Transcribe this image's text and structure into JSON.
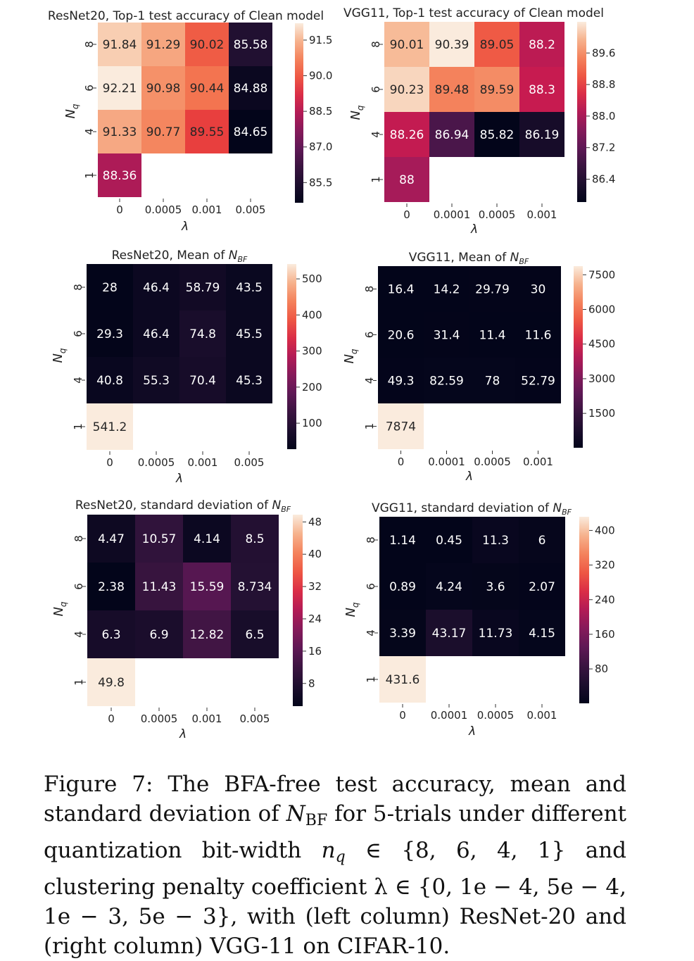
{
  "chart_data": [
    {
      "type": "heatmap",
      "title_main": "ResNet20, Top-1 test accuracy of Clean model",
      "title_sym": "",
      "xlabel": "λ",
      "ylabel_main": "N",
      "ylabel_sub": "q",
      "x_ticks": [
        "0",
        "0.0005",
        "0.001",
        "0.005"
      ],
      "y_ticks": [
        "8",
        "6",
        "4",
        "1"
      ],
      "cells": [
        [
          "91.84",
          "91.29",
          "90.02",
          "85.58"
        ],
        [
          "92.21",
          "90.98",
          "90.44",
          "84.88"
        ],
        [
          "91.33",
          "90.77",
          "89.55",
          "84.65"
        ],
        [
          "88.36",
          null,
          null,
          null
        ]
      ],
      "vmin": 84.65,
      "vmax": 92.21,
      "colorbar_ticks": [
        85.5,
        87.0,
        88.5,
        90.0,
        91.5
      ],
      "colorbar_labels": [
        "85.5",
        "87.0",
        "88.5",
        "90.0",
        "91.5"
      ]
    },
    {
      "type": "heatmap",
      "title_main": "VGG11, Top-1 test accuracy of Clean model",
      "title_sym": "",
      "xlabel": "λ",
      "ylabel_main": "N",
      "ylabel_sub": "q",
      "x_ticks": [
        "0",
        "0.0001",
        "0.0005",
        "0.001"
      ],
      "y_ticks": [
        "8",
        "6",
        "4",
        "1"
      ],
      "cells": [
        [
          "90.01",
          "90.39",
          "89.05",
          "88.2"
        ],
        [
          "90.23",
          "89.48",
          "89.59",
          "88.3"
        ],
        [
          "88.26",
          "86.94",
          "85.82",
          "86.19"
        ],
        [
          "88",
          null,
          null,
          null
        ]
      ],
      "vmin": 85.82,
      "vmax": 90.39,
      "colorbar_ticks": [
        86.4,
        87.2,
        88.0,
        88.8,
        89.6
      ],
      "colorbar_labels": [
        "86.4",
        "87.2",
        "88.0",
        "88.8",
        "89.6"
      ]
    },
    {
      "type": "heatmap",
      "title_main": "ResNet20, Mean of ",
      "title_sym": "N",
      "title_sub": "BF",
      "xlabel": "λ",
      "ylabel_main": "N",
      "ylabel_sub": "q",
      "x_ticks": [
        "0",
        "0.0005",
        "0.001",
        "0.005"
      ],
      "y_ticks": [
        "8",
        "6",
        "4",
        "1"
      ],
      "cells": [
        [
          "28",
          "46.4",
          "58.79",
          "43.5"
        ],
        [
          "29.3",
          "46.4",
          "74.8",
          "45.5"
        ],
        [
          "40.8",
          "55.3",
          "70.4",
          "45.3"
        ],
        [
          "541.2",
          null,
          null,
          null
        ]
      ],
      "vmin": 28,
      "vmax": 541.2,
      "colorbar_ticks": [
        100,
        200,
        300,
        400,
        500
      ],
      "colorbar_labels": [
        "100",
        "200",
        "300",
        "400",
        "500"
      ]
    },
    {
      "type": "heatmap",
      "title_main": "VGG11, Mean of ",
      "title_sym": "N",
      "title_sub": "BF",
      "xlabel": "λ",
      "ylabel_main": "N",
      "ylabel_sub": "q",
      "x_ticks": [
        "0",
        "0.0001",
        "0.0005",
        "0.001"
      ],
      "y_ticks": [
        "8",
        "6",
        "4",
        "1"
      ],
      "cells": [
        [
          "16.4",
          "14.2",
          "29.79",
          "30"
        ],
        [
          "20.6",
          "31.4",
          "11.4",
          "11.6"
        ],
        [
          "49.3",
          "82.59",
          "78",
          "52.79"
        ],
        [
          "7874",
          null,
          null,
          null
        ]
      ],
      "vmin": 11.4,
      "vmax": 7874,
      "colorbar_ticks": [
        1500,
        3000,
        4500,
        6000,
        7500
      ],
      "colorbar_labels": [
        "1500",
        "3000",
        "4500",
        "6000",
        "7500"
      ]
    },
    {
      "type": "heatmap",
      "title_main": "ResNet20, standard deviation of ",
      "title_sym": "N",
      "title_sub": "BF",
      "xlabel": "λ",
      "ylabel_main": "N",
      "ylabel_sub": "q",
      "x_ticks": [
        "0",
        "0.0005",
        "0.001",
        "0.005"
      ],
      "y_ticks": [
        "8",
        "6",
        "4",
        "1"
      ],
      "cells": [
        [
          "4.47",
          "10.57",
          "4.14",
          "8.5"
        ],
        [
          "2.38",
          "11.43",
          "15.59",
          "8.734"
        ],
        [
          "6.3",
          "6.9",
          "12.82",
          "6.5"
        ],
        [
          "49.8",
          null,
          null,
          null
        ]
      ],
      "vmin": 2.38,
      "vmax": 49.8,
      "colorbar_ticks": [
        8,
        16,
        24,
        32,
        40,
        48
      ],
      "colorbar_labels": [
        "8",
        "16",
        "24",
        "32",
        "40",
        "48"
      ]
    },
    {
      "type": "heatmap",
      "title_main": "VGG11, standard deviation of ",
      "title_sym": "N",
      "title_sub": "BF",
      "xlabel": "λ",
      "ylabel_main": "N",
      "ylabel_sub": "q",
      "x_ticks": [
        "0",
        "0.0001",
        "0.0005",
        "0.001"
      ],
      "y_ticks": [
        "8",
        "6",
        "4",
        "1"
      ],
      "cells": [
        [
          "1.14",
          "0.45",
          "11.3",
          "6"
        ],
        [
          "0.89",
          "4.24",
          "3.6",
          "2.07"
        ],
        [
          "3.39",
          "43.17",
          "11.73",
          "4.15"
        ],
        [
          "431.6",
          null,
          null,
          null
        ]
      ],
      "vmin": 0.45,
      "vmax": 431.6,
      "colorbar_ticks": [
        80,
        160,
        240,
        320,
        400
      ],
      "colorbar_labels": [
        "80",
        "160",
        "240",
        "320",
        "400"
      ]
    }
  ],
  "caption": {
    "t1": "Figure 7: The BFA-free test accuracy, mean and standard deviation of ",
    "n": "N",
    "n_sub": "BF",
    "t2": " for 5-trials under different quantization bit-width ",
    "nq": "n",
    "nq_sub": "q",
    "t3": " ∈ {8, 6, 4, 1} and clustering penalty coefficient λ ∈ {0, 1e − 4, 5e − 4, 1e − 3, 5e − 3}, with (left column) ResNet-20 and (right column) VGG-11 on CIFAR-10."
  }
}
